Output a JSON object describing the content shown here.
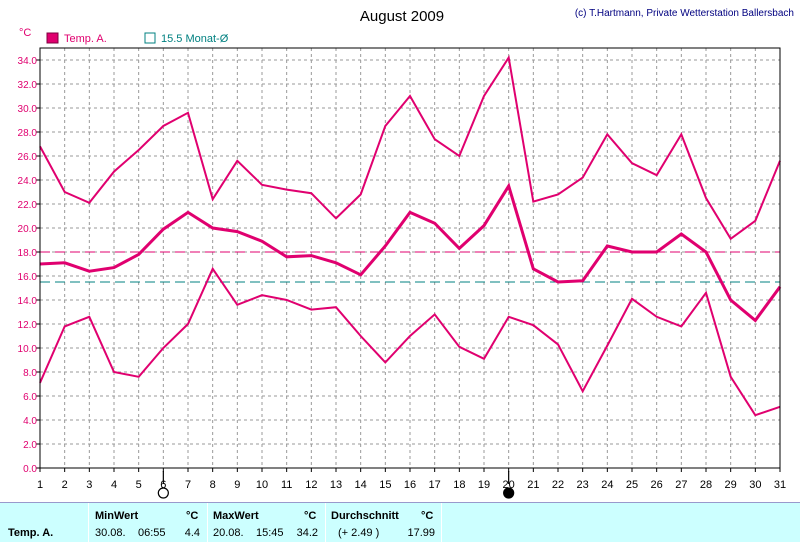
{
  "title": "August 2009",
  "credit": "(c) T.Hartmann, Private Wetterstation Ballersbach",
  "unit_label": "°C",
  "legend": [
    {
      "label": "Temp. A.",
      "marker": "filled-square",
      "color": "#e0006f"
    },
    {
      "label": "15.5 Monat-Ø",
      "marker": "hollow-square",
      "color": "#008080"
    }
  ],
  "moon_phases": [
    {
      "day": 6,
      "phase": "full-moon",
      "glyph": "○"
    },
    {
      "day": 20,
      "phase": "new-moon",
      "glyph": "●"
    }
  ],
  "chart_data": {
    "type": "line",
    "x": [
      1,
      2,
      3,
      4,
      5,
      6,
      7,
      8,
      9,
      10,
      11,
      12,
      13,
      14,
      15,
      16,
      17,
      18,
      19,
      20,
      21,
      22,
      23,
      24,
      25,
      26,
      27,
      28,
      29,
      30,
      31
    ],
    "x_tick_labels": [
      "1",
      "2",
      "3",
      "4",
      "5",
      "6",
      "7",
      "8",
      "9",
      "10",
      "11",
      "12",
      "13",
      "14",
      "15",
      "16",
      "17",
      "18",
      "19",
      "20",
      "21",
      "22",
      "23",
      "24",
      "25",
      "26",
      "27",
      "28",
      "29",
      "30",
      "31"
    ],
    "ylim": [
      0,
      35
    ],
    "y_tick_labels": [
      "0.0",
      "2.0",
      "4.0",
      "6.0",
      "8.0",
      "10.0",
      "12.0",
      "14.0",
      "16.0",
      "18.0",
      "20.0",
      "22.0",
      "24.0",
      "26.0",
      "28.0",
      "30.0",
      "32.0",
      "34.0"
    ],
    "grid": true,
    "series": [
      {
        "role": "max",
        "color": "#e0006f",
        "width": 2,
        "values": [
          26.8,
          23.0,
          22.1,
          24.7,
          26.5,
          28.5,
          29.6,
          22.4,
          25.6,
          23.6,
          23.2,
          22.9,
          20.8,
          22.8,
          28.5,
          31.0,
          27.4,
          26.0,
          31.0,
          34.2,
          22.2,
          22.8,
          24.2,
          27.8,
          25.4,
          24.4,
          27.8,
          22.5,
          19.1,
          20.6,
          25.6
        ]
      },
      {
        "role": "mean",
        "color": "#e0006f",
        "width": 3,
        "values": [
          17.0,
          17.1,
          16.4,
          16.7,
          17.8,
          19.9,
          21.3,
          20.0,
          19.7,
          18.9,
          17.6,
          17.7,
          17.1,
          16.1,
          18.5,
          21.3,
          20.4,
          18.3,
          20.2,
          23.5,
          16.6,
          15.5,
          15.6,
          18.5,
          18.0,
          18.0,
          19.5,
          18.0,
          14.0,
          12.3,
          15.1
        ]
      },
      {
        "role": "min",
        "color": "#e0006f",
        "width": 2,
        "values": [
          7.1,
          11.8,
          12.6,
          8.0,
          7.6,
          10.0,
          12.0,
          16.6,
          13.6,
          14.4,
          14.0,
          13.2,
          13.4,
          11.0,
          8.8,
          11.0,
          12.8,
          10.1,
          9.1,
          12.6,
          11.9,
          10.3,
          6.4,
          10.2,
          14.1,
          12.6,
          11.8,
          14.6,
          7.6,
          4.4,
          5.1
        ]
      }
    ],
    "reference_lines": [
      {
        "value": 18.0,
        "color": "#e0006f",
        "style": "dashed"
      },
      {
        "value": 15.5,
        "color": "#008080",
        "style": "dashed"
      }
    ]
  },
  "stats": {
    "row_label": "Temp. A.",
    "min": {
      "header": "MinWert",
      "unit": "°C",
      "date": "30.08.",
      "time": "06:55",
      "value": "4.4"
    },
    "max": {
      "header": "MaxWert",
      "unit": "°C",
      "date": "20.08.",
      "time": "15:45",
      "value": "34.2"
    },
    "avg": {
      "header": "Durchschnitt",
      "unit": "°C",
      "diff": "(+ 2.49 )",
      "value": "17.99"
    }
  }
}
